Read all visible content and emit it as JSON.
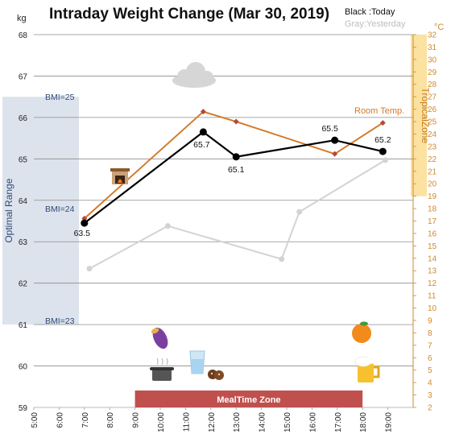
{
  "chart_data": {
    "type": "line",
    "title": "Intraday Weight Change (Mar 30, 2019)",
    "legend": {
      "today": "Black :Today",
      "yesterday": "Gray:Yesterday",
      "placement": "top-right"
    },
    "y_unit_left": "kg",
    "y_unit_right": "°C",
    "ylim": [
      59,
      68
    ],
    "ylim_right": [
      2,
      32
    ],
    "yticks_left": [
      "59",
      "60",
      "61",
      "62",
      "63",
      "64",
      "65",
      "66",
      "67",
      "68"
    ],
    "yticks_right": [
      "2",
      "3",
      "4",
      "5",
      "6",
      "7",
      "8",
      "9",
      "10",
      "11",
      "12",
      "13",
      "14",
      "15",
      "16",
      "17",
      "18",
      "19",
      "20",
      "21",
      "22",
      "23",
      "24",
      "25",
      "26",
      "27",
      "28",
      "29",
      "30",
      "31",
      "32"
    ],
    "xlim": [
      5,
      20
    ],
    "xticks": [
      "5:00",
      "6:00",
      "7:00",
      "8:00",
      "9:00",
      "10:00",
      "11:00",
      "12:00",
      "13:00",
      "14:00",
      "15:00",
      "16:00",
      "17:00",
      "18:00",
      "19:00"
    ],
    "grid": "horizontal",
    "series": [
      {
        "name": "Black :Today",
        "color": "#000000",
        "x": [
          7,
          11.7,
          13,
          16.9,
          18.8
        ],
        "y": [
          63.45,
          65.65,
          65.05,
          65.45,
          65.18
        ],
        "labels": [
          "63.5",
          "65.7",
          "65.1",
          "65.5",
          "65.2"
        ]
      },
      {
        "name": "Gray:Yesterday",
        "color": "#d3d3d3",
        "x": [
          7.2,
          10.3,
          14.8,
          15.5,
          18.9
        ],
        "y": [
          62.35,
          63.38,
          62.58,
          63.72,
          64.97
        ]
      },
      {
        "name": "Room Temp.",
        "color": "#d47a28",
        "axis": "right",
        "x": [
          7,
          11.7,
          13,
          16.9,
          18.8
        ],
        "y": [
          17.2,
          25.8,
          25.0,
          22.4,
          24.9
        ]
      }
    ],
    "bands": [
      {
        "label": "Optimal Range",
        "axis": "left",
        "from": 61,
        "to": 66.5,
        "color": "#dde3ec"
      },
      {
        "label": "TropicalZone",
        "axis": "right",
        "from": 19,
        "to": 32,
        "color": "#fbe2a0"
      },
      {
        "label": "MealTime Zone",
        "x_from": 9,
        "x_to": 18,
        "color": "#c0504d"
      }
    ],
    "bmi_lines": [
      {
        "label": "BMI=25",
        "y": 66.5
      },
      {
        "label": "BMI=24",
        "y": 63.8
      },
      {
        "label": "BMI=23",
        "y": 61.1
      }
    ],
    "annotations": [
      {
        "label": "Room Temp."
      }
    ],
    "icons": [
      "cloud-icon",
      "fireplace-icon",
      "sweet-potato-icon",
      "cooking-pot-icon",
      "water-glass-icon",
      "cookies-icon",
      "orange-icon",
      "beer-mug-icon"
    ]
  }
}
